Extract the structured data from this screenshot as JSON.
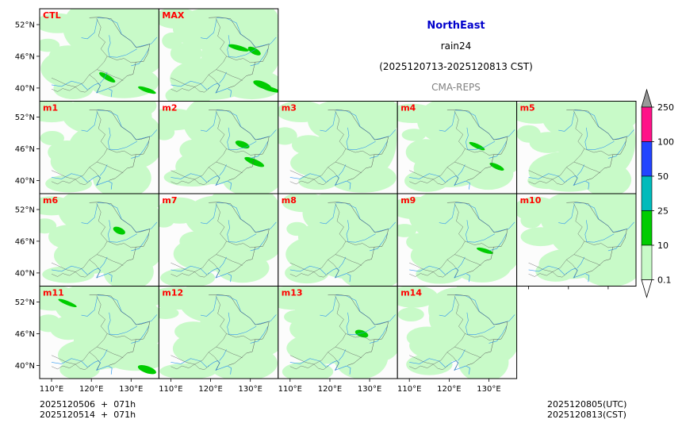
{
  "header": {
    "region": "NorthEast",
    "variable": "rain24",
    "period": "(2025120713-2025120813 CST)",
    "model": "CMA-REPS"
  },
  "footer": {
    "left_line1": "2025120506  +  071h",
    "left_line2": "2025120514  +  071h",
    "right_line1": "2025120805(UTC)",
    "right_line2": "2025120813(CST)"
  },
  "colors": {
    "panel_label": "#ff0000",
    "land_bg": "#fcfcfc",
    "rain_light": "#c8fac8",
    "rain_medium": "#00cc00",
    "rivers": "#3399ee",
    "borders": "#555555"
  },
  "chart_data": {
    "type": "heatmap",
    "title": "NorthEast rain24 (2025120713-2025120813 CST) CMA-REPS",
    "xlabel": "",
    "ylabel": "",
    "x_ticks": [
      "110°E",
      "120°E",
      "130°E"
    ],
    "x_tick_values": [
      110,
      120,
      130
    ],
    "y_ticks": [
      "52°N",
      "46°N",
      "40°N"
    ],
    "y_tick_values": [
      52,
      46,
      40
    ],
    "xlim": [
      107,
      137
    ],
    "ylim": [
      37.5,
      55
    ],
    "colorbar": {
      "levels": [
        "0.1",
        "10",
        "25",
        "50",
        "100",
        "250"
      ],
      "colors": [
        "#c8fac8",
        "#00cc00",
        "#00bbbb",
        "#2244ff",
        "#ff1188",
        "#999999"
      ],
      "extend": "both"
    },
    "panels": [
      {
        "label": "CTL",
        "coverage": "light",
        "heavy": [
          [
            124,
            42.0
          ],
          [
            134,
            39.6
          ]
        ]
      },
      {
        "label": "MAX",
        "coverage": "light",
        "heavy": [
          [
            127,
            47.6
          ],
          [
            131,
            47.0
          ],
          [
            133,
            40.6
          ],
          [
            135,
            39.8
          ]
        ]
      },
      {
        "label": "m1",
        "coverage": "light",
        "heavy": []
      },
      {
        "label": "m2",
        "coverage": "light",
        "heavy": [
          [
            128,
            46.8
          ],
          [
            131,
            43.5
          ]
        ]
      },
      {
        "label": "m3",
        "coverage": "light",
        "heavy": []
      },
      {
        "label": "m4",
        "coverage": "light",
        "heavy": [
          [
            127,
            46.5
          ],
          [
            132,
            42.6
          ]
        ]
      },
      {
        "label": "m5",
        "coverage": "light",
        "heavy": []
      },
      {
        "label": "m6",
        "coverage": "light",
        "heavy": [
          [
            127,
            48.0
          ]
        ]
      },
      {
        "label": "m7",
        "coverage": "light",
        "heavy": []
      },
      {
        "label": "m8",
        "coverage": "light",
        "heavy": []
      },
      {
        "label": "m9",
        "coverage": "light",
        "heavy": [
          [
            129,
            44.2
          ]
        ]
      },
      {
        "label": "m10",
        "coverage": "light",
        "heavy": []
      },
      {
        "label": "m11",
        "coverage": "light",
        "heavy": [
          [
            134,
            39.2
          ],
          [
            114,
            51.8
          ]
        ]
      },
      {
        "label": "m12",
        "coverage": "light",
        "heavy": []
      },
      {
        "label": "m13",
        "coverage": "light",
        "heavy": [
          [
            128,
            46.0
          ]
        ]
      },
      {
        "label": "m14",
        "coverage": "light",
        "heavy": []
      }
    ]
  }
}
